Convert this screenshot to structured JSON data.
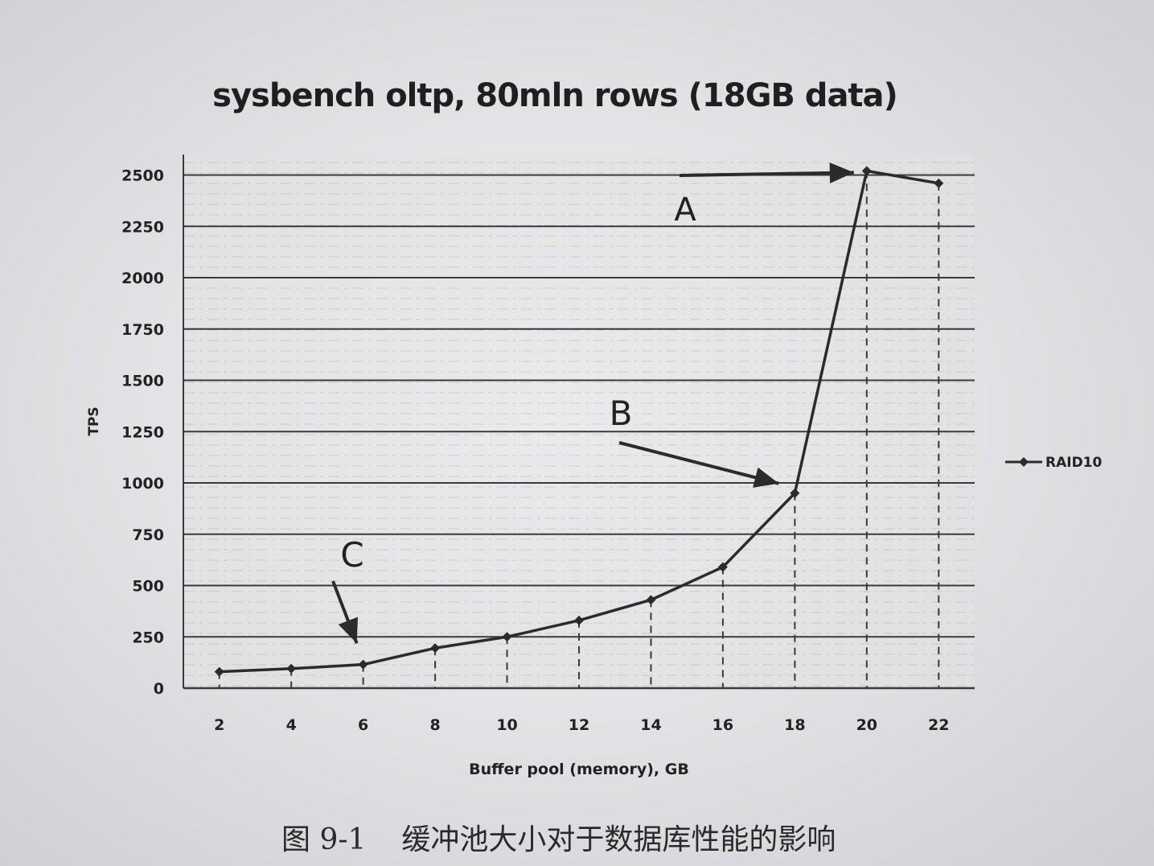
{
  "chart_data": {
    "type": "line",
    "title": "sysbench oltp, 80mln rows (18GB data)",
    "xlabel": "Buffer pool (memory), GB",
    "ylabel": "TPS",
    "x": [
      2,
      4,
      6,
      8,
      10,
      12,
      14,
      16,
      18,
      20,
      22
    ],
    "xlim": [
      1,
      23
    ],
    "ylim": [
      0,
      2600
    ],
    "yticks": [
      0,
      250,
      500,
      750,
      1000,
      1250,
      1500,
      1750,
      2000,
      2250,
      2500
    ],
    "grid": true,
    "legend": "right",
    "series": [
      {
        "name": "RAID10",
        "values": [
          80,
          95,
          115,
          195,
          250,
          330,
          430,
          590,
          950,
          2520,
          2460
        ]
      }
    ],
    "annotations": [
      {
        "label": "A",
        "x": 20,
        "y": 2520
      },
      {
        "label": "B",
        "x": 18,
        "y": 950
      },
      {
        "label": "C",
        "x": 6,
        "y": 250
      }
    ]
  },
  "caption": {
    "number": "图 9-1",
    "text": "缓冲池大小对于数据库性能的影响"
  },
  "colors": {
    "line": "#2b2b2b",
    "grid": "#3a3a3a",
    "text": "#222222"
  }
}
